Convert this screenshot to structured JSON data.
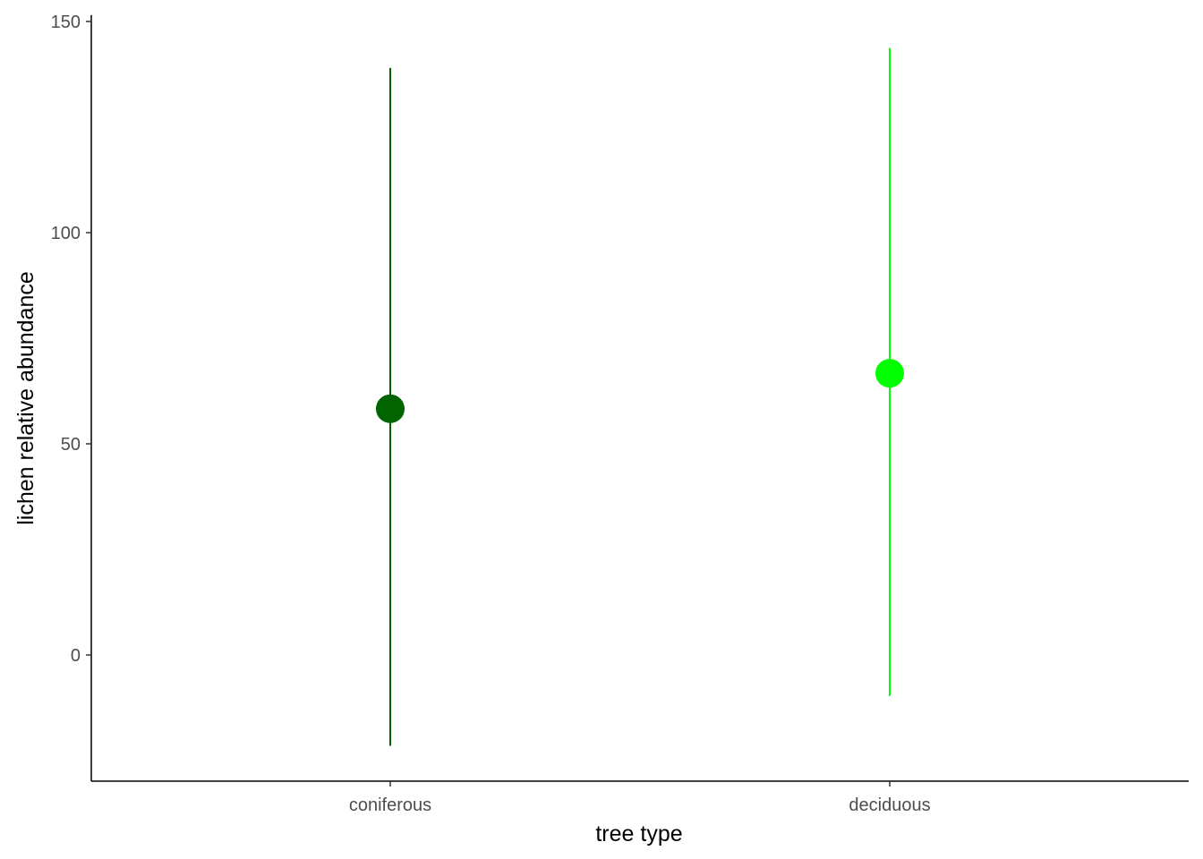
{
  "chart_data": {
    "type": "pointrange",
    "xlabel": "tree type",
    "ylabel": "lichen relative abundance",
    "categories": [
      "coniferous",
      "deciduous"
    ],
    "points": [
      {
        "category": "coniferous",
        "y": 58.3,
        "ymin": -21.5,
        "ymax": 139.0,
        "color": "#006400"
      },
      {
        "category": "deciduous",
        "y": 66.7,
        "ymin": -9.7,
        "ymax": 143.7,
        "color": "#00ff00"
      }
    ],
    "ylim": [
      -30,
      151.5
    ],
    "yticks": [
      0,
      50,
      100,
      150
    ],
    "grid": false,
    "legend": "none"
  }
}
